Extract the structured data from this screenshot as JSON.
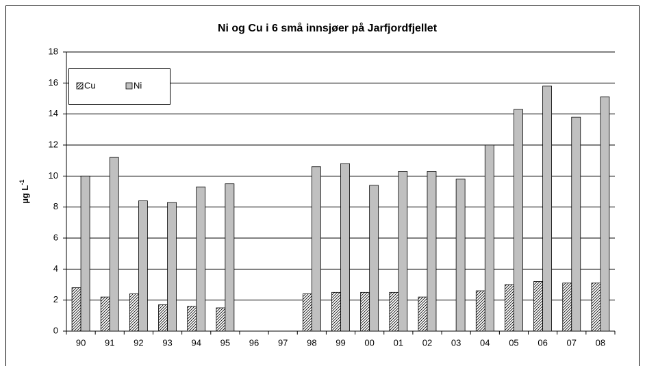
{
  "chart_data": {
    "type": "bar",
    "title": "Ni og Cu i 6 små innsjøer på Jarfjordfjellet",
    "ylabel": "µg L",
    "ylabel_superscript": "-1",
    "categories": [
      "90",
      "91",
      "92",
      "93",
      "94",
      "95",
      "96",
      "97",
      "98",
      "99",
      "00",
      "01",
      "02",
      "03",
      "04",
      "05",
      "06",
      "07",
      "08"
    ],
    "series": [
      {
        "name": "Cu",
        "color": "#000000",
        "hatch": true,
        "values": [
          2.8,
          2.2,
          2.4,
          1.7,
          1.6,
          1.5,
          null,
          null,
          2.4,
          2.5,
          2.5,
          2.5,
          2.2,
          null,
          2.6,
          3.0,
          3.2,
          3.1,
          3.1
        ]
      },
      {
        "name": "Ni",
        "color": "#c0c0c0",
        "hatch": false,
        "values": [
          10.0,
          11.2,
          8.4,
          8.3,
          9.3,
          9.5,
          null,
          null,
          10.6,
          10.8,
          9.4,
          10.3,
          10.3,
          9.8,
          12.0,
          14.3,
          15.8,
          13.8,
          15.1
        ]
      }
    ],
    "ylim": [
      0,
      18
    ],
    "yticks": [
      0,
      2,
      4,
      6,
      8,
      10,
      12,
      14,
      16,
      18
    ],
    "grid": true,
    "legend": "upper left"
  }
}
